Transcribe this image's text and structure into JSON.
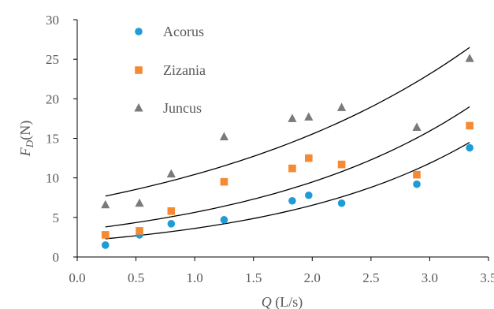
{
  "chart_data": {
    "type": "scatter",
    "xlabel": {
      "main": "Q",
      "rest": " (L/s)"
    },
    "ylabel": {
      "main": "F",
      "sub": "D",
      "rest": "(N)"
    },
    "xlim": [
      0,
      3.5
    ],
    "ylim": [
      0,
      30
    ],
    "xticks": [
      "0.0",
      "0.5",
      "1.0",
      "1.5",
      "2.0",
      "2.5",
      "3.0",
      "3.5"
    ],
    "yticks": [
      "0",
      "5",
      "10",
      "15",
      "20",
      "25",
      "30"
    ],
    "grid": false,
    "legend_position": "top-left",
    "series": [
      {
        "name": "Acorus",
        "marker": "circle",
        "color": "#1f9bd7",
        "x": [
          0.24,
          0.53,
          0.8,
          1.25,
          1.83,
          1.97,
          2.25,
          2.89,
          3.34
        ],
        "y": [
          1.5,
          2.8,
          4.2,
          4.7,
          7.1,
          7.8,
          6.8,
          9.2,
          13.8
        ],
        "trend": {
          "x_start": 0.24,
          "x_end": 3.34,
          "y_start": 2.3,
          "y_end": 14.5
        }
      },
      {
        "name": "Zizania",
        "marker": "square",
        "color": "#f58a32",
        "x": [
          0.24,
          0.53,
          0.8,
          1.25,
          1.83,
          1.97,
          2.25,
          2.89,
          3.34
        ],
        "y": [
          2.8,
          3.3,
          5.8,
          9.5,
          11.2,
          12.5,
          11.7,
          10.4,
          16.6
        ],
        "trend": {
          "x_start": 0.24,
          "x_end": 3.34,
          "y_start": 3.8,
          "y_end": 19.0
        }
      },
      {
        "name": "Juncus",
        "marker": "triangle",
        "color": "#7a7a7a",
        "x": [
          0.24,
          0.53,
          0.8,
          1.25,
          1.83,
          1.97,
          2.25,
          2.89,
          3.34
        ],
        "y": [
          6.6,
          6.8,
          10.5,
          15.2,
          17.5,
          17.7,
          18.9,
          16.4,
          25.1
        ],
        "trend": {
          "x_start": 0.24,
          "x_end": 3.34,
          "y_start": 7.7,
          "y_end": 26.5
        }
      }
    ],
    "trend_color": "#000000",
    "axis_color": "#000000"
  }
}
